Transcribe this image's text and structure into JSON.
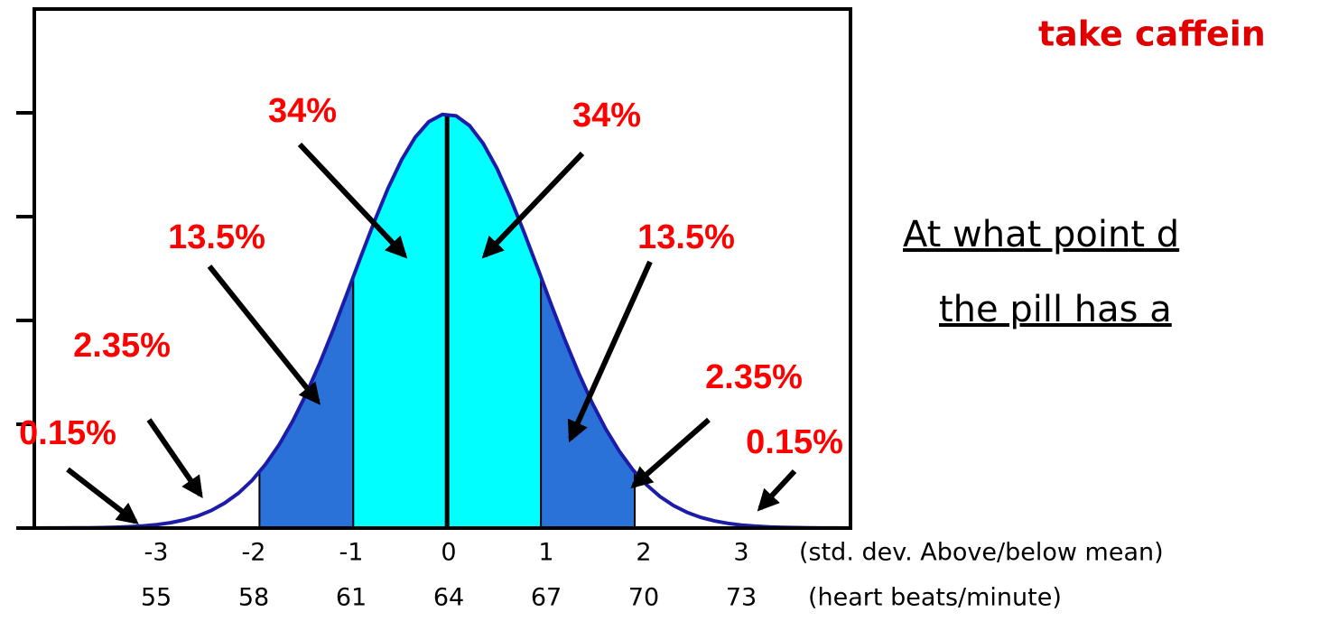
{
  "chart_data": {
    "type": "normal",
    "values": [
      0.15,
      2.35,
      13.5,
      34,
      34,
      13.5,
      2.35,
      0.15
    ],
    "value_labels": [
      "0.15%",
      "2.35%",
      "13.5%",
      "34%",
      "34%",
      "13.5%",
      "2.35%",
      "0.15%"
    ],
    "colors": [
      "#ffffff",
      "#ffffff",
      "#2a72d8",
      "#00ffff",
      "#00ffff",
      "#2a72d8",
      "#ffffff",
      "#ffffff"
    ],
    "curve_color": "#1c1ca8",
    "label_color": "#ff0000",
    "xlim": [
      -4.4,
      4.3
    ],
    "xticks": [
      -3,
      -2,
      -1,
      0,
      1,
      2,
      3
    ],
    "x2ticks": [
      55,
      58,
      61,
      64,
      67,
      70,
      73
    ],
    "xlabel": "(std. dev. Above/below mean)",
    "x2label": "(heart beats/minute)",
    "ylim": [
      0,
      0.5
    ],
    "yticks": [
      0,
      0.1,
      0.2,
      0.3,
      0.4
    ]
  },
  "slide_text": {
    "heading": "take caffein",
    "lines": [
      "At what point d",
      "the pill has a"
    ]
  }
}
